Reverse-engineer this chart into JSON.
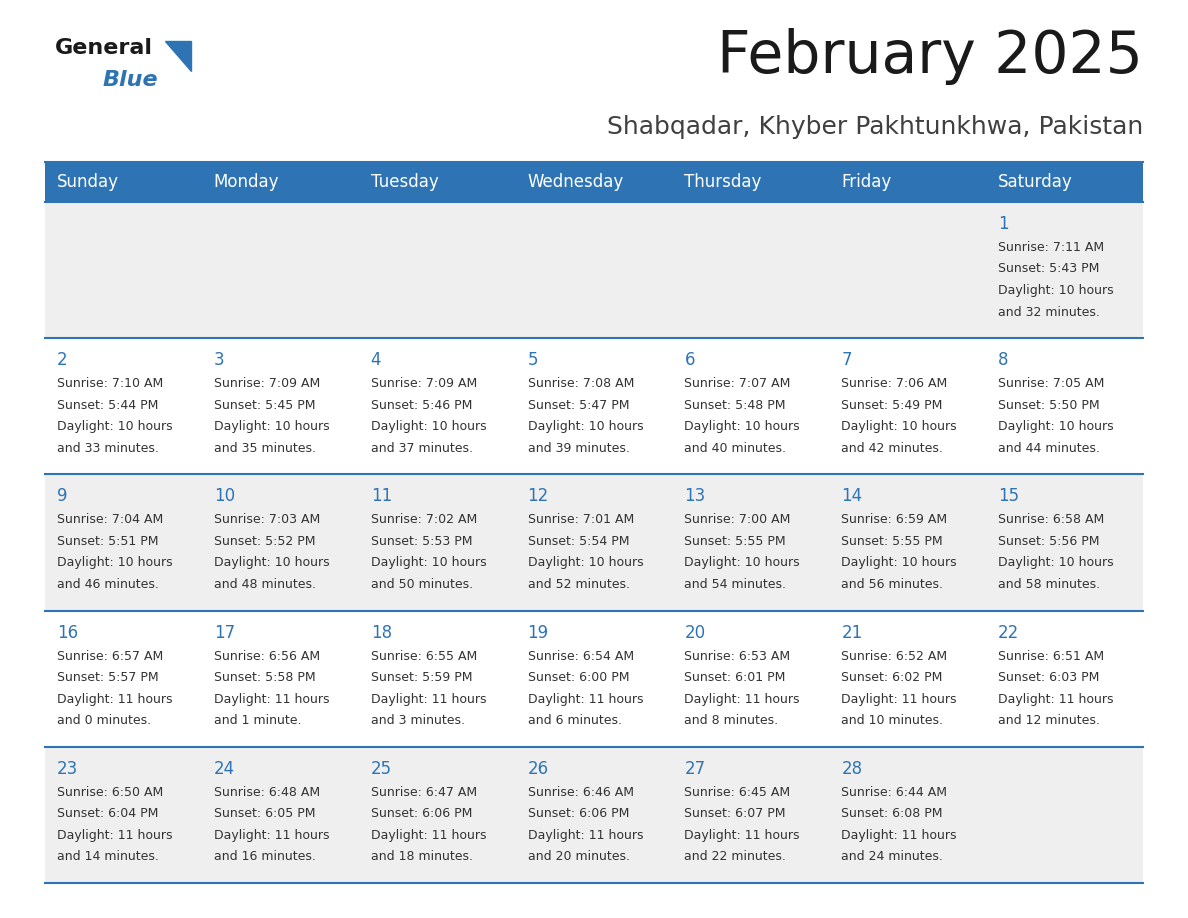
{
  "title": "February 2025",
  "subtitle": "Shabqadar, Khyber Pakhtunkhwa, Pakistan",
  "header_bg_color": "#2e74b5",
  "header_text_color": "#ffffff",
  "row_bg_even": "#efefef",
  "row_bg_odd": "#ffffff",
  "separator_color": "#2e74b5",
  "days_of_week": [
    "Sunday",
    "Monday",
    "Tuesday",
    "Wednesday",
    "Thursday",
    "Friday",
    "Saturday"
  ],
  "calendar_data": [
    [
      {
        "day": null,
        "sunrise": null,
        "sunset": null,
        "daylight": null
      },
      {
        "day": null,
        "sunrise": null,
        "sunset": null,
        "daylight": null
      },
      {
        "day": null,
        "sunrise": null,
        "sunset": null,
        "daylight": null
      },
      {
        "day": null,
        "sunrise": null,
        "sunset": null,
        "daylight": null
      },
      {
        "day": null,
        "sunrise": null,
        "sunset": null,
        "daylight": null
      },
      {
        "day": null,
        "sunrise": null,
        "sunset": null,
        "daylight": null
      },
      {
        "day": 1,
        "sunrise": "7:11 AM",
        "sunset": "5:43 PM",
        "daylight": "10 hours\nand 32 minutes."
      }
    ],
    [
      {
        "day": 2,
        "sunrise": "7:10 AM",
        "sunset": "5:44 PM",
        "daylight": "10 hours\nand 33 minutes."
      },
      {
        "day": 3,
        "sunrise": "7:09 AM",
        "sunset": "5:45 PM",
        "daylight": "10 hours\nand 35 minutes."
      },
      {
        "day": 4,
        "sunrise": "7:09 AM",
        "sunset": "5:46 PM",
        "daylight": "10 hours\nand 37 minutes."
      },
      {
        "day": 5,
        "sunrise": "7:08 AM",
        "sunset": "5:47 PM",
        "daylight": "10 hours\nand 39 minutes."
      },
      {
        "day": 6,
        "sunrise": "7:07 AM",
        "sunset": "5:48 PM",
        "daylight": "10 hours\nand 40 minutes."
      },
      {
        "day": 7,
        "sunrise": "7:06 AM",
        "sunset": "5:49 PM",
        "daylight": "10 hours\nand 42 minutes."
      },
      {
        "day": 8,
        "sunrise": "7:05 AM",
        "sunset": "5:50 PM",
        "daylight": "10 hours\nand 44 minutes."
      }
    ],
    [
      {
        "day": 9,
        "sunrise": "7:04 AM",
        "sunset": "5:51 PM",
        "daylight": "10 hours\nand 46 minutes."
      },
      {
        "day": 10,
        "sunrise": "7:03 AM",
        "sunset": "5:52 PM",
        "daylight": "10 hours\nand 48 minutes."
      },
      {
        "day": 11,
        "sunrise": "7:02 AM",
        "sunset": "5:53 PM",
        "daylight": "10 hours\nand 50 minutes."
      },
      {
        "day": 12,
        "sunrise": "7:01 AM",
        "sunset": "5:54 PM",
        "daylight": "10 hours\nand 52 minutes."
      },
      {
        "day": 13,
        "sunrise": "7:00 AM",
        "sunset": "5:55 PM",
        "daylight": "10 hours\nand 54 minutes."
      },
      {
        "day": 14,
        "sunrise": "6:59 AM",
        "sunset": "5:55 PM",
        "daylight": "10 hours\nand 56 minutes."
      },
      {
        "day": 15,
        "sunrise": "6:58 AM",
        "sunset": "5:56 PM",
        "daylight": "10 hours\nand 58 minutes."
      }
    ],
    [
      {
        "day": 16,
        "sunrise": "6:57 AM",
        "sunset": "5:57 PM",
        "daylight": "11 hours\nand 0 minutes."
      },
      {
        "day": 17,
        "sunrise": "6:56 AM",
        "sunset": "5:58 PM",
        "daylight": "11 hours\nand 1 minute."
      },
      {
        "day": 18,
        "sunrise": "6:55 AM",
        "sunset": "5:59 PM",
        "daylight": "11 hours\nand 3 minutes."
      },
      {
        "day": 19,
        "sunrise": "6:54 AM",
        "sunset": "6:00 PM",
        "daylight": "11 hours\nand 6 minutes."
      },
      {
        "day": 20,
        "sunrise": "6:53 AM",
        "sunset": "6:01 PM",
        "daylight": "11 hours\nand 8 minutes."
      },
      {
        "day": 21,
        "sunrise": "6:52 AM",
        "sunset": "6:02 PM",
        "daylight": "11 hours\nand 10 minutes."
      },
      {
        "day": 22,
        "sunrise": "6:51 AM",
        "sunset": "6:03 PM",
        "daylight": "11 hours\nand 12 minutes."
      }
    ],
    [
      {
        "day": 23,
        "sunrise": "6:50 AM",
        "sunset": "6:04 PM",
        "daylight": "11 hours\nand 14 minutes."
      },
      {
        "day": 24,
        "sunrise": "6:48 AM",
        "sunset": "6:05 PM",
        "daylight": "11 hours\nand 16 minutes."
      },
      {
        "day": 25,
        "sunrise": "6:47 AM",
        "sunset": "6:06 PM",
        "daylight": "11 hours\nand 18 minutes."
      },
      {
        "day": 26,
        "sunrise": "6:46 AM",
        "sunset": "6:06 PM",
        "daylight": "11 hours\nand 20 minutes."
      },
      {
        "day": 27,
        "sunrise": "6:45 AM",
        "sunset": "6:07 PM",
        "daylight": "11 hours\nand 22 minutes."
      },
      {
        "day": 28,
        "sunrise": "6:44 AM",
        "sunset": "6:08 PM",
        "daylight": "11 hours\nand 24 minutes."
      },
      {
        "day": null,
        "sunrise": null,
        "sunset": null,
        "daylight": null
      }
    ]
  ],
  "logo_general_color": "#1a1a1a",
  "logo_blue_color": "#2e74b5",
  "logo_triangle_color": "#2e74b5",
  "title_fontsize": 42,
  "subtitle_fontsize": 18,
  "header_fontsize": 12,
  "day_number_fontsize": 12,
  "cell_text_fontsize": 9
}
